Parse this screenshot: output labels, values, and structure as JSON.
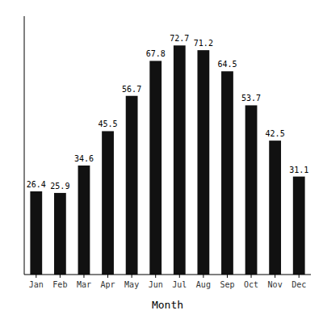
{
  "chart_data": {
    "type": "bar",
    "categories": [
      "Jan",
      "Feb",
      "Mar",
      "Apr",
      "May",
      "Jun",
      "Jul",
      "Aug",
      "Sep",
      "Oct",
      "Nov",
      "Dec"
    ],
    "values": [
      26.4,
      25.9,
      34.6,
      45.5,
      56.7,
      67.8,
      72.7,
      71.2,
      64.5,
      53.7,
      42.5,
      31.1
    ],
    "color": "#111111",
    "xlabel": "Month",
    "ylim": [
      0,
      82
    ],
    "data_labels": true,
    "tick_labels": "x"
  }
}
